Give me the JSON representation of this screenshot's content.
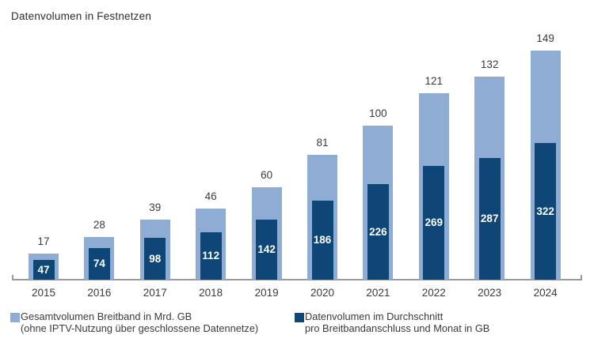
{
  "title": "Datenvolumen in Festnetzen",
  "chart_data": {
    "type": "bar",
    "categories": [
      "2015",
      "2016",
      "2017",
      "2018",
      "2019",
      "2020",
      "2021",
      "2022",
      "2023",
      "2024"
    ],
    "series": [
      {
        "name": "Gesamtvolumen Breitband in Mrd. GB (ohne IPTV-Nutzung über geschlossene Datennetze)",
        "values": [
          17,
          28,
          39,
          46,
          60,
          81,
          100,
          121,
          132,
          149
        ],
        "color": "#8FADD4",
        "value_label_color": "#3A3A39",
        "value_label_position": "above"
      },
      {
        "name": "Datenvolumen im Durchschnitt pro Breitbandanschluss und Monat in GB",
        "values": [
          47,
          74,
          98,
          112,
          142,
          186,
          226,
          269,
          287,
          322
        ],
        "color": "#0E4678",
        "value_label_color": "#FFFFFF",
        "value_label_position": "inside"
      }
    ],
    "title": "Datenvolumen in Festnetzen",
    "xlabel": "",
    "ylabel": "",
    "grid": false,
    "value_labels": true,
    "legend_position": "bottom",
    "axis_color": "#9A9A9A"
  },
  "legend": {
    "items": [
      {
        "color": "#8FADD4",
        "line1": "Gesamtvolumen Breitband in Mrd. GB",
        "line2": "(ohne IPTV-Nutzung über geschlossene Datennetze)"
      },
      {
        "color": "#0E4678",
        "line1": "Datenvolumen im Durchschnitt",
        "line2": "pro Breitbandanschluss und Monat in GB"
      }
    ]
  }
}
